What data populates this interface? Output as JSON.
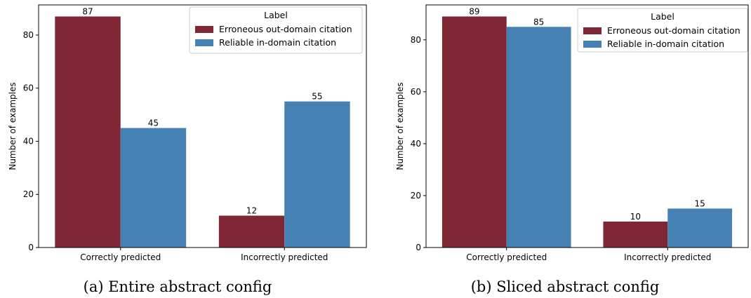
{
  "chart_data": [
    {
      "type": "bar",
      "caption": "(a) Entire abstract config",
      "categories": [
        "Correctly predicted",
        "Incorrectly predicted"
      ],
      "series": [
        {
          "name": "Erroneous out-domain citation",
          "color": "#7f2735",
          "values": [
            87,
            12
          ]
        },
        {
          "name": "Reliable in-domain citation",
          "color": "#4581b3",
          "values": [
            45,
            55
          ]
        }
      ],
      "xlabel": "",
      "ylabel": "Number of examples",
      "ylim": [
        0,
        91.35
      ],
      "yticks": [
        0,
        20,
        40,
        60,
        80
      ],
      "legend_title": "Label",
      "legend_position": "top-right"
    },
    {
      "type": "bar",
      "caption": "(b) Sliced abstract config",
      "categories": [
        "Correctly predicted",
        "Incorrectly predicted"
      ],
      "series": [
        {
          "name": "Erroneous out-domain citation",
          "color": "#7f2735",
          "values": [
            89,
            10
          ]
        },
        {
          "name": "Reliable in-domain citation",
          "color": "#4581b3",
          "values": [
            85,
            15
          ]
        }
      ],
      "xlabel": "",
      "ylabel": "Number of examples",
      "ylim": [
        0,
        93.45
      ],
      "yticks": [
        0,
        20,
        40,
        60,
        80
      ],
      "legend_title": "Label",
      "legend_position": "top-right"
    }
  ]
}
